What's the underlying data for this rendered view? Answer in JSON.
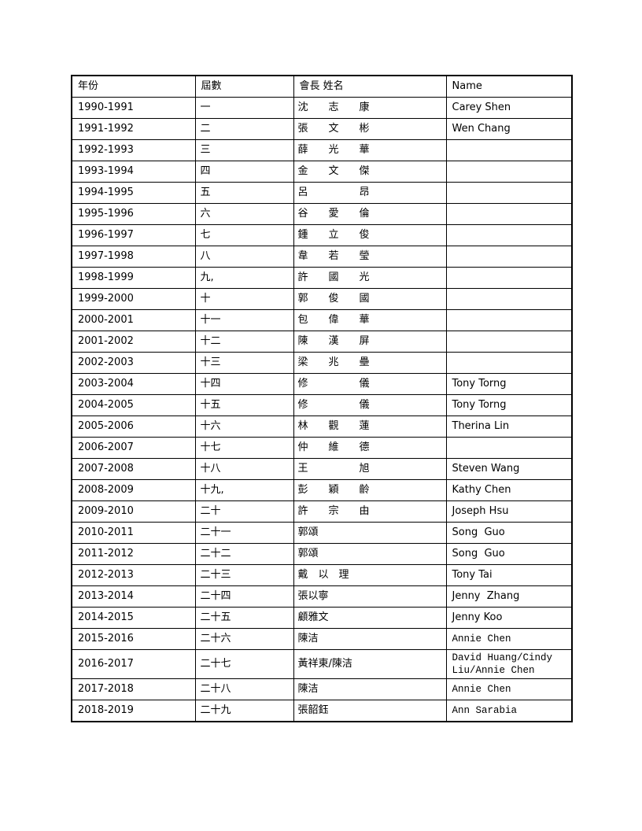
{
  "document_title": "Association presidents roster table",
  "table": {
    "columns": [
      "年份",
      "屆數",
      "會長 姓名",
      "Name"
    ],
    "rows": [
      {
        "year": "1990-1991",
        "term": "一",
        "cn": "沈　　志　　康",
        "en": "Carey Shen",
        "en_class": ""
      },
      {
        "year": "1991-1992",
        "term": "二",
        "cn": "張　　文　　彬",
        "en": "Wen Chang",
        "en_class": ""
      },
      {
        "year": "1992-1993",
        "term": "三",
        "cn": "薛　　光　　華",
        "en": "",
        "en_class": ""
      },
      {
        "year": "1993-1994",
        "term": "四",
        "cn": "金　　文　　傑",
        "en": "",
        "en_class": ""
      },
      {
        "year": "1994-1995",
        "term": "五",
        "cn": "呂　　　　　昂",
        "en": "",
        "en_class": ""
      },
      {
        "year": "1995-1996",
        "term": "六",
        "cn": "谷　　愛　　倫",
        "en": "",
        "en_class": ""
      },
      {
        "year": "1996-1997",
        "term": "七",
        "cn": "鍾　　立　　俊",
        "en": "",
        "en_class": ""
      },
      {
        "year": "1997-1998",
        "term": "八",
        "cn": "韋　　若　　瑩",
        "en": "",
        "en_class": ""
      },
      {
        "year": "1998-1999",
        "term": "九,",
        "cn": "許　　國　　光",
        "en": "",
        "en_class": ""
      },
      {
        "year": "1999-2000",
        "term": "十",
        "cn": "郭　　俊　　國",
        "en": "",
        "en_class": ""
      },
      {
        "year": "2000-2001",
        "term": "十一",
        "cn": "包　　偉　　華",
        "en": "",
        "en_class": ""
      },
      {
        "year": "2001-2002",
        "term": "十二",
        "cn": "陳　　漢　　屏",
        "en": "",
        "en_class": ""
      },
      {
        "year": "2002-2003",
        "term": "十三",
        "cn": "梁　　兆　　壘",
        "en": "",
        "en_class": ""
      },
      {
        "year": "2003-2004",
        "term": "十四",
        "cn": "修　　　　　儀",
        "en": "Tony Torng",
        "en_class": ""
      },
      {
        "year": "2004-2005",
        "term": "十五",
        "cn": "修　　　　　儀",
        "en": "Tony Torng",
        "en_class": ""
      },
      {
        "year": "2005-2006",
        "term": "十六",
        "cn": "林　　觀　　蓮",
        "en": "Therina Lin",
        "en_class": ""
      },
      {
        "year": "2006-2007",
        "term": "十七",
        "cn": "仲　　維　　德",
        "en": "",
        "en_class": ""
      },
      {
        "year": "2007-2008",
        "term": "十八",
        "cn": "王　　　　　旭",
        "en": "Steven Wang",
        "en_class": ""
      },
      {
        "year": "2008-2009",
        "term": "十九,",
        "cn": "彭　　穎　　齡",
        "en": "Kathy Chen",
        "en_class": ""
      },
      {
        "year": "2009-2010",
        "term": "二十",
        "cn": "許　　宗　　由",
        "en": "Joseph Hsu",
        "en_class": ""
      },
      {
        "year": "2010-2011",
        "term": "二十一",
        "cn": "郭頌",
        "en": "Song  Guo",
        "en_class": ""
      },
      {
        "year": "2011-2012",
        "term": "二十二",
        "cn": "郭頌",
        "en": "Song  Guo",
        "en_class": ""
      },
      {
        "year": "2012-2013",
        "term": "二十三",
        "cn": "戴　以　理",
        "en": "Tony Tai",
        "en_class": ""
      },
      {
        "year": "2013-2014",
        "term": "二十四",
        "cn": "張以寧",
        "en": "Jenny  Zhang",
        "en_class": ""
      },
      {
        "year": "2014-2015",
        "term": "二十五",
        "cn": "顧雅文",
        "en": "Jenny Koo",
        "en_class": ""
      },
      {
        "year": "2015-2016",
        "term": "二十六",
        "cn": "陳洁",
        "en": "Annie Chen",
        "en_class": "mono"
      },
      {
        "year": "2016-2017",
        "term": "二十七",
        "cn": "黃祥東/陳洁",
        "en": "David Huang/Cindy Liu/Annie Chen",
        "en_class": "mono"
      },
      {
        "year": "2017-2018",
        "term": "二十八",
        "cn": "陳洁",
        "en": "Annie Chen",
        "en_class": "mono"
      },
      {
        "year": "2018-2019",
        "term": "二十九",
        "cn": "張韶鈺",
        "en": "Ann Sarabia",
        "en_class": "mono"
      }
    ]
  }
}
